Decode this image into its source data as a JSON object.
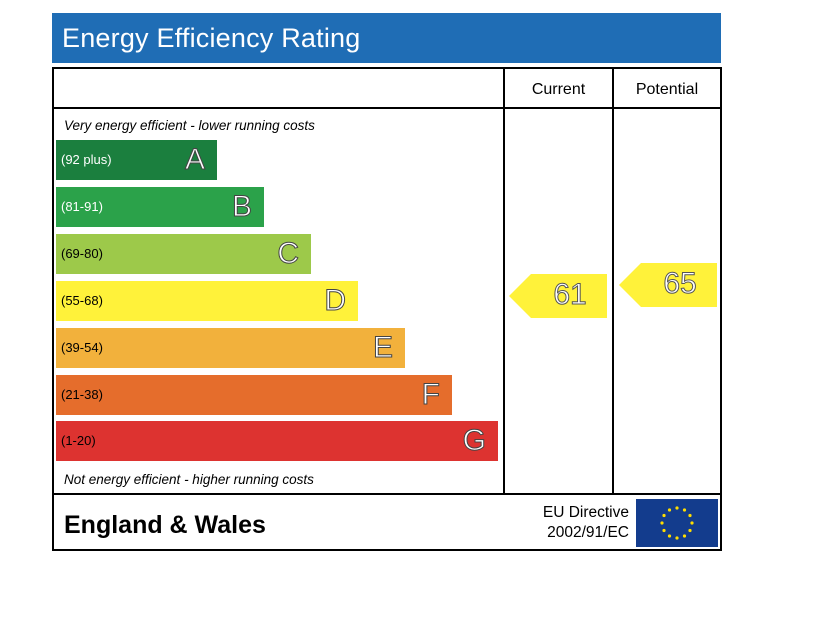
{
  "header": {
    "title": "Energy Efficiency Rating"
  },
  "columns": {
    "current_label": "Current",
    "potential_label": "Potential"
  },
  "notes": {
    "top": "Very energy efficient - lower running costs",
    "bottom": "Not energy efficient - higher running costs"
  },
  "chart_data": {
    "type": "bar",
    "title": "Energy Efficiency Rating",
    "bands": [
      {
        "letter": "A",
        "range": "(92 plus)",
        "color": "#1b7f3e"
      },
      {
        "letter": "B",
        "range": "(81-91)",
        "color": "#2ba24a"
      },
      {
        "letter": "C",
        "range": "(69-80)",
        "color": "#9dc94a"
      },
      {
        "letter": "D",
        "range": "(55-68)",
        "color": "#fff23a"
      },
      {
        "letter": "E",
        "range": "(39-54)",
        "color": "#f2b13c"
      },
      {
        "letter": "F",
        "range": "(21-38)",
        "color": "#e56d2c"
      },
      {
        "letter": "G",
        "range": "(1-20)",
        "color": "#dd3330"
      }
    ],
    "current": {
      "value": 61,
      "band": "D",
      "color": "#fff23a"
    },
    "potential": {
      "value": 65,
      "band": "D",
      "color": "#fff23a"
    }
  },
  "footer": {
    "region": "England & Wales",
    "directive_line1": "EU Directive",
    "directive_line2": "2002/91/EC",
    "flag_color": "#133c8d",
    "star_color": "#ffdd00"
  }
}
